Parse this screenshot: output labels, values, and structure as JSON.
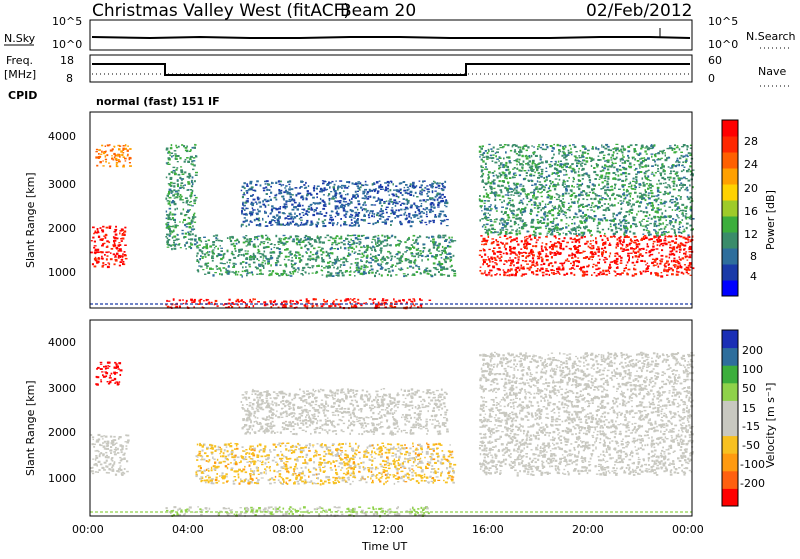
{
  "header": {
    "station": "Christmas Valley West (fitACF)",
    "beam": "Beam 20",
    "date": "02/Feb/2012"
  },
  "top_panels": {
    "nsky_label": "N.Sky",
    "nsky_ticks": [
      "10^5",
      "10^0"
    ],
    "nsky_right_ticks": [
      "10^5",
      "10^0"
    ],
    "nsearch_label": "N.Search",
    "freq_label": "Freq.",
    "freq_unit": "[MHz]",
    "freq_ticks": [
      "18",
      "8"
    ],
    "nave_ticks": [
      "60",
      "0"
    ],
    "nave_label": "Nave",
    "cpid_label": "CPID",
    "cpid_value": "normal (fast) 151 IF"
  },
  "power_panel": {
    "ylabel": "Slant Range [km]",
    "yticks": [
      "4000",
      "3000",
      "2000",
      "1000"
    ],
    "colorbar_label": "Power [dB]",
    "colorbar_ticks": [
      "28",
      "24",
      "20",
      "16",
      "12",
      "8",
      "4"
    ],
    "colors": [
      "#0000ff",
      "#1a3aa8",
      "#2e6e9c",
      "#3a8c6a",
      "#3cae3c",
      "#9ecb2a",
      "#ffd200",
      "#ffa000",
      "#ff6000",
      "#ff2800",
      "#ff0000"
    ]
  },
  "velocity_panel": {
    "ylabel": "Slant Range [km]",
    "yticks": [
      "4000",
      "3000",
      "2000",
      "1000"
    ],
    "colorbar_label": "Velocity [m s⁻¹]",
    "colorbar_ticks": [
      "200",
      "100",
      "50",
      "15",
      "-15",
      "-50",
      "-100",
      "-200"
    ],
    "colors": [
      "#1a2fb5",
      "#2e6e9c",
      "#3cae3c",
      "#8fd24a",
      "#c8c8c0",
      "#c8c8c0",
      "#f7c020",
      "#ff9a10",
      "#ff6010",
      "#ff0000"
    ]
  },
  "xaxis": {
    "ticks": [
      "00:00",
      "04:00",
      "08:00",
      "12:00",
      "16:00",
      "20:00",
      "00:00"
    ],
    "label": "Time UT"
  },
  "chart_data": [
    {
      "type": "heatmap",
      "title": "Power",
      "ylabel": "Slant Range [km]",
      "xlabel": "Time UT",
      "xlim": [
        "00:00",
        "24:00"
      ],
      "ylim": [
        180,
        4500
      ],
      "colorbar_label": "Power [dB]",
      "colorbar_range": [
        0,
        30
      ],
      "regions": [
        {
          "t0": 0.0,
          "t1": 1.4,
          "r0": 1100,
          "r1": 2000,
          "value": 28
        },
        {
          "t0": 0.2,
          "t1": 1.6,
          "r0": 3300,
          "r1": 3800,
          "value": 22
        },
        {
          "t0": 3.0,
          "t1": 4.2,
          "r0": 1500,
          "r1": 3800,
          "value": 10
        },
        {
          "t0": 4.2,
          "t1": 14.5,
          "r0": 900,
          "r1": 1800,
          "value": 10
        },
        {
          "t0": 6.0,
          "t1": 14.2,
          "r0": 2000,
          "r1": 3000,
          "value": 6
        },
        {
          "t0": 3.0,
          "t1": 13.5,
          "r0": 200,
          "r1": 400,
          "value": 28
        },
        {
          "t0": 15.5,
          "t1": 24.0,
          "r0": 900,
          "r1": 1800,
          "value": 28
        },
        {
          "t0": 15.5,
          "t1": 24.0,
          "r0": 1800,
          "r1": 3800,
          "value": 10
        }
      ]
    },
    {
      "type": "heatmap",
      "title": "Velocity",
      "ylabel": "Slant Range [km]",
      "xlabel": "Time UT",
      "xlim": [
        "00:00",
        "24:00"
      ],
      "ylim": [
        180,
        4500
      ],
      "colorbar_label": "Velocity [m s⁻¹]",
      "colorbar_range": [
        -200,
        200
      ],
      "regions": [
        {
          "t0": 0.0,
          "t1": 1.5,
          "r0": 1100,
          "r1": 2000,
          "value": 0
        },
        {
          "t0": 0.2,
          "t1": 1.2,
          "r0": 3100,
          "r1": 3600,
          "value": -200
        },
        {
          "t0": 4.2,
          "t1": 14.5,
          "r0": 900,
          "r1": 1800,
          "value": -50
        },
        {
          "t0": 6.0,
          "t1": 14.2,
          "r0": 2000,
          "r1": 3000,
          "value": 0
        },
        {
          "t0": 3.0,
          "t1": 13.5,
          "r0": 200,
          "r1": 400,
          "value": 30
        },
        {
          "t0": 15.5,
          "t1": 24.0,
          "r0": 1100,
          "r1": 1800,
          "value": 0
        },
        {
          "t0": 15.5,
          "t1": 24.0,
          "r0": 1800,
          "r1": 3800,
          "value": 0
        }
      ]
    }
  ]
}
